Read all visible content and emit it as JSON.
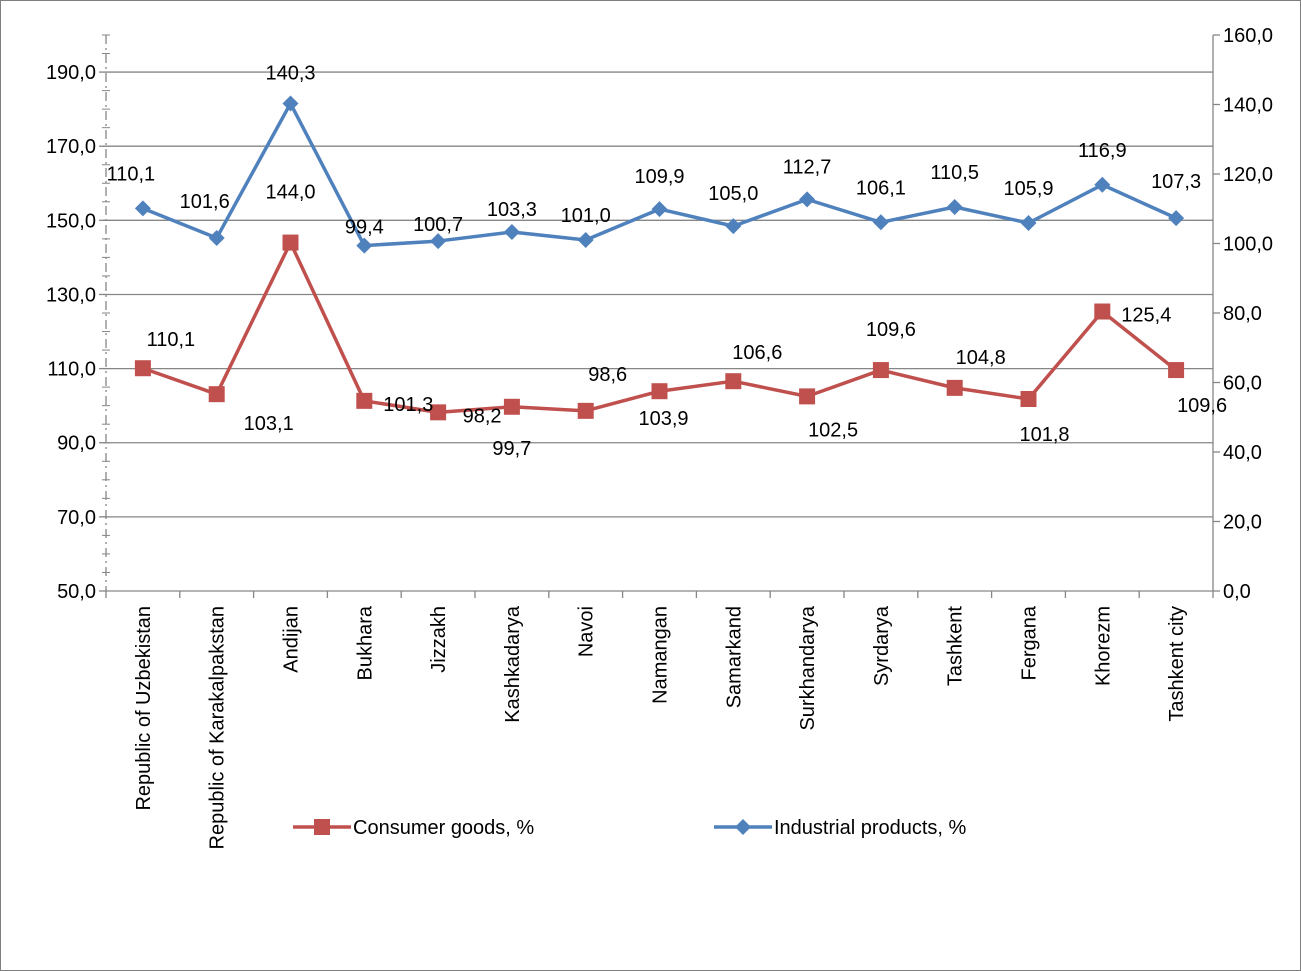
{
  "chart_data": {
    "type": "line",
    "categories": [
      "Republic of Uzbekistan",
      "Republic of Karakalpakstan",
      "Andijan",
      "Bukhara",
      "Jizzakh",
      "Kashkadarya",
      "Navoi",
      "Namangan",
      "Samarkand",
      "Surkhandarya",
      "Syrdarya",
      "Tashkent",
      "Fergana",
      "Khorezm",
      "Tashkent city"
    ],
    "series": [
      {
        "name": "Consumer goods, %",
        "axis": "left",
        "color": "#c0504d",
        "marker": "square",
        "values": [
          110.1,
          103.1,
          144.0,
          101.3,
          98.2,
          99.7,
          98.6,
          103.9,
          106.6,
          102.5,
          109.6,
          104.8,
          101.8,
          125.4,
          109.6
        ],
        "labels": [
          "110,1",
          "103,1",
          "144,0",
          "101,3",
          "98,2",
          "99,7",
          "98,6",
          "103,9",
          "106,6",
          "102,5",
          "109,6",
          "104,8",
          "101,8",
          "125,4",
          "109,6"
        ]
      },
      {
        "name": "Industrial products, %",
        "axis": "right",
        "color": "#4f81bd",
        "marker": "diamond",
        "values": [
          110.1,
          101.6,
          140.3,
          99.4,
          100.7,
          103.3,
          101.0,
          109.9,
          105.0,
          112.7,
          106.1,
          110.5,
          105.9,
          116.9,
          107.3
        ],
        "labels": [
          "110,1",
          "101,6",
          "140,3",
          "99,4",
          "100,7",
          "103,3",
          "101,0",
          "109,9",
          "105,0",
          "112,7",
          "106,1",
          "110,5",
          "105,9",
          "116,9",
          "107,3"
        ]
      }
    ],
    "y_left": {
      "ylim": [
        50,
        200
      ],
      "ticks": [
        50,
        70,
        90,
        110,
        130,
        150,
        170,
        190
      ],
      "tick_labels": [
        "50,0",
        "70,0",
        "90,0",
        "110,0",
        "130,0",
        "150,0",
        "170,0",
        "190,0"
      ]
    },
    "y_right": {
      "ylim": [
        0,
        160
      ],
      "ticks": [
        0,
        20,
        40,
        60,
        80,
        100,
        120,
        140,
        160
      ],
      "tick_labels": [
        "0,0",
        "20,0",
        "40,0",
        "60,0",
        "80,0",
        "100,0",
        "120,0",
        "140,0",
        "160,0"
      ]
    },
    "grid": true,
    "legend_position": "bottom",
    "title": "",
    "xlabel": "",
    "ylabel": ""
  }
}
